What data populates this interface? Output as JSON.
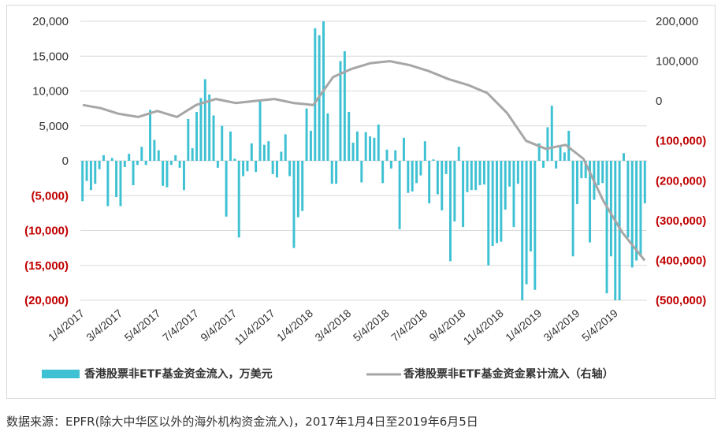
{
  "chart_data": {
    "type": "bar+line",
    "x_tick_labels": [
      "1/4/2017",
      "3/4/2017",
      "5/4/2017",
      "7/4/2017",
      "9/4/2017",
      "11/4/2017",
      "1/4/2018",
      "3/4/2018",
      "5/4/2018",
      "7/4/2018",
      "9/4/2018",
      "11/4/2018",
      "1/4/2019",
      "3/4/2019",
      "5/4/2019"
    ],
    "left_axis": {
      "ylim": [
        -20000,
        20000
      ],
      "ticks": [
        {
          "value": 20000,
          "label": "20,000"
        },
        {
          "value": 15000,
          "label": "15,000"
        },
        {
          "value": 10000,
          "label": "10,000"
        },
        {
          "value": 5000,
          "label": "5,000"
        },
        {
          "value": 0,
          "label": "0"
        },
        {
          "value": -5000,
          "label": "(5,000)"
        },
        {
          "value": -10000,
          "label": "(10,000)"
        },
        {
          "value": -15000,
          "label": "(15,000)"
        },
        {
          "value": -20000,
          "label": "(20,000)"
        }
      ]
    },
    "right_axis": {
      "ylim": [
        -500000,
        200000
      ],
      "ticks": [
        {
          "value": 200000,
          "label": "200,000"
        },
        {
          "value": 100000,
          "label": "100,000"
        },
        {
          "value": 0,
          "label": "0"
        },
        {
          "value": -100000,
          "label": "(100,000)"
        },
        {
          "value": -200000,
          "label": "(200,000)"
        },
        {
          "value": -300000,
          "label": "(300,000)"
        },
        {
          "value": -400000,
          "label": "(400,000)"
        },
        {
          "value": -500000,
          "label": "(500,000)"
        }
      ]
    },
    "series": [
      {
        "name": "香港股票非ETF基金资金流入，万美元",
        "type": "bar",
        "axis": "left",
        "color": "#3ec1d3",
        "values": [
          -5800,
          -2900,
          -4200,
          -3300,
          -1200,
          800,
          -6500,
          400,
          -5200,
          -6500,
          -900,
          1000,
          -3500,
          -600,
          2000,
          -600,
          7300,
          3000,
          1500,
          -3600,
          -3800,
          -600,
          800,
          -1000,
          -4200,
          6000,
          1800,
          7000,
          9000,
          11700,
          9500,
          6500,
          -1000,
          5000,
          -8000,
          4200,
          300,
          -11000,
          -2200,
          -1500,
          2500,
          -1600,
          8800,
          2300,
          2800,
          -1900,
          -2400,
          1300,
          3800,
          -2200,
          -12500,
          -8100,
          -7200,
          7500,
          4300,
          19000,
          18000,
          20000,
          6800,
          -3300,
          -3300,
          14300,
          15700,
          7000,
          2600,
          4200,
          -3100,
          4100,
          3500,
          3300,
          5200,
          -3200,
          1600,
          -1100,
          1500,
          -9800,
          3300,
          -4600,
          -4400,
          -3200,
          -2100,
          2800,
          -6100,
          200,
          -4800,
          -7100,
          -1900,
          -14400,
          -8700,
          2000,
          -9500,
          -4500,
          -4200,
          -4200,
          -3500,
          -3400,
          -15000,
          -12200,
          -11800,
          -11600,
          -7000,
          -3700,
          -9500,
          -3300,
          -20000,
          -17700,
          -13000,
          -18500,
          2500,
          -1000,
          4800,
          7900,
          -1100,
          2000,
          1200,
          4300,
          -13700,
          -6200,
          -2500,
          -2500,
          -11700,
          -5600,
          -3500,
          -3200,
          -19000,
          -13700,
          -20000,
          -20000,
          1100,
          -11000,
          -15300,
          -14300,
          -13700,
          -6100
        ]
      },
      {
        "name": "香港股票非ETF基金资金累计流入（右轴）",
        "type": "line",
        "axis": "right",
        "color": "#a6a6a6",
        "x": [
          "2017-01-04",
          "2017-02-01",
          "2017-03-01",
          "2017-04-01",
          "2017-05-01",
          "2017-06-01",
          "2017-07-01",
          "2017-08-01",
          "2017-09-01",
          "2017-10-01",
          "2017-11-01",
          "2017-12-01",
          "2018-01-01",
          "2018-02-01",
          "2018-03-01",
          "2018-04-01",
          "2018-05-01",
          "2018-06-01",
          "2018-07-01",
          "2018-08-01",
          "2018-09-01",
          "2018-10-01",
          "2018-11-01",
          "2018-12-01",
          "2019-01-01",
          "2019-02-01",
          "2019-03-01",
          "2019-04-01",
          "2019-05-01",
          "2019-06-05"
        ],
        "values": [
          -10000,
          -18000,
          -32000,
          -40000,
          -25000,
          -40000,
          -10000,
          5000,
          -5000,
          0,
          5000,
          -5000,
          -10000,
          60000,
          80000,
          95000,
          100000,
          90000,
          75000,
          55000,
          40000,
          20000,
          -30000,
          -100000,
          -120000,
          -110000,
          -145000,
          -250000,
          -330000,
          -400000
        ]
      }
    ]
  },
  "legend": {
    "bar_label": "香港股票非ETF基金资金流入，万美元",
    "line_label": "香港股票非ETF基金资金累计流入（右轴）"
  },
  "source_note": "数据来源：EPFR(除大中华区以外的海外机构资金流入)，2017年1月4日至2019年6月5日",
  "colors": {
    "bar": "#3ec1d3",
    "line": "#a6a6a6",
    "positive_tick": "#333333",
    "negative_tick": "#c00000",
    "grid": "#d9d9d9"
  }
}
